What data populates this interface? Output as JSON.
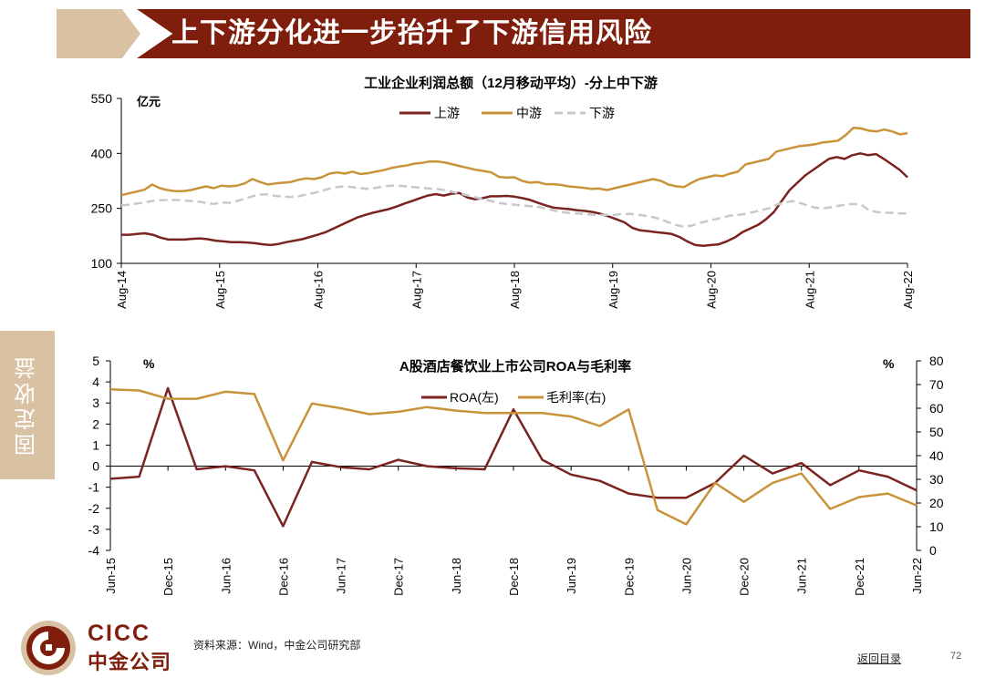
{
  "header": {
    "title": "上下游分化进一步抬升了下游信用风险"
  },
  "sidebar": {
    "label": "固定收益"
  },
  "colors": {
    "brand_red": "#7f1e0c",
    "tan": "#d8c2a3",
    "upstream": "#7b2320",
    "midstream": "#c8933a",
    "downstream": "#c8c8c8"
  },
  "chart_data": [
    {
      "type": "line",
      "title": "工业企业利润总额（12月移动平均）-分上中下游",
      "ylabel": "亿元",
      "ylim": [
        100,
        550
      ],
      "yticks": [
        "550",
        "400",
        "250",
        "100"
      ],
      "xticks": [
        "Aug-14",
        "Aug-15",
        "Aug-16",
        "Aug-17",
        "Aug-18",
        "Aug-19",
        "Aug-20",
        "Aug-21",
        "Aug-22"
      ],
      "series": [
        {
          "name": "上游",
          "values": [
            178,
            178,
            180,
            182,
            178,
            170,
            165,
            165,
            165,
            167,
            168,
            166,
            162,
            160,
            158,
            158,
            157,
            155,
            152,
            150,
            153,
            158,
            162,
            166,
            172,
            178,
            185,
            195,
            205,
            215,
            225,
            232,
            238,
            243,
            248,
            255,
            263,
            270,
            278,
            285,
            289,
            285,
            290,
            292,
            280,
            275,
            278,
            283,
            283,
            284,
            282,
            278,
            273,
            265,
            258,
            252,
            250,
            248,
            245,
            243,
            240,
            235,
            228,
            220,
            212,
            197,
            190,
            188,
            185,
            183,
            180,
            172,
            160,
            150,
            148,
            150,
            152,
            160,
            170,
            185,
            195,
            205,
            220,
            240,
            270,
            300,
            320,
            340,
            355,
            370,
            385,
            390,
            385,
            395,
            400,
            395,
            398,
            385,
            370,
            355,
            335
          ]
        },
        {
          "name": "中游",
          "values": [
            286,
            291,
            296,
            301,
            315,
            305,
            300,
            297,
            297,
            300,
            305,
            310,
            305,
            312,
            310,
            312,
            318,
            330,
            322,
            315,
            318,
            320,
            322,
            328,
            332,
            330,
            335,
            345,
            348,
            345,
            350,
            344,
            346,
            350,
            354,
            360,
            364,
            367,
            372,
            374,
            378,
            378,
            375,
            370,
            365,
            360,
            355,
            352,
            348,
            336,
            334,
            335,
            325,
            320,
            322,
            316,
            316,
            314,
            310,
            308,
            306,
            303,
            304,
            300,
            305,
            310,
            315,
            320,
            325,
            330,
            325,
            315,
            310,
            308,
            320,
            330,
            335,
            340,
            338,
            345,
            350,
            370,
            375,
            380,
            385,
            405,
            410,
            415,
            420,
            422,
            425,
            430,
            432,
            435,
            450,
            470,
            468,
            462,
            460,
            465,
            460,
            452,
            455
          ]
        },
        {
          "name": "下游",
          "values": [
            258,
            260,
            263,
            266,
            270,
            272,
            273,
            273,
            272,
            270,
            268,
            265,
            262,
            266,
            265,
            270,
            276,
            283,
            288,
            288,
            284,
            282,
            281,
            283,
            288,
            292,
            298,
            304,
            308,
            310,
            308,
            305,
            303,
            306,
            310,
            312,
            312,
            310,
            308,
            306,
            304,
            303,
            300,
            295,
            290,
            285,
            280,
            275,
            270,
            265,
            262,
            260,
            258,
            256,
            255,
            250,
            245,
            240,
            238,
            236,
            235,
            233,
            232,
            232,
            232,
            235,
            235,
            233,
            230,
            226,
            220,
            212,
            205,
            200,
            203,
            210,
            215,
            220,
            225,
            230,
            232,
            235,
            240,
            245,
            250,
            260,
            265,
            270,
            265,
            258,
            252,
            250,
            253,
            257,
            260,
            262,
            260,
            245,
            240,
            238,
            238,
            236,
            236
          ]
        }
      ]
    },
    {
      "type": "line",
      "title": "A股酒店餐饮业上市公司ROA与毛利率",
      "ylabel_left": "%",
      "ylabel_right": "%",
      "ylim_left": [
        -4,
        5
      ],
      "ylim_right": [
        0,
        80
      ],
      "yticks_left": [
        "5",
        "4",
        "3",
        "2",
        "1",
        "0",
        "-1",
        "-2",
        "-3",
        "-4"
      ],
      "yticks_right": [
        "80",
        "70",
        "60",
        "50",
        "40",
        "30",
        "20",
        "10",
        "0"
      ],
      "xticks": [
        "Jun-15",
        "Dec-15",
        "Jun-16",
        "Dec-16",
        "Jun-17",
        "Dec-17",
        "Jun-18",
        "Dec-18",
        "Jun-19",
        "Dec-19",
        "Jun-20",
        "Dec-20",
        "Jun-21",
        "Dec-21",
        "Jun-22"
      ],
      "series": [
        {
          "name": "ROA(左)",
          "axis": "left",
          "values": [
            -0.6,
            -0.5,
            3.7,
            -0.15,
            0.0,
            -0.2,
            -2.85,
            0.2,
            -0.05,
            -0.15,
            0.3,
            0.0,
            -0.1,
            -0.15,
            2.7,
            0.3,
            -0.4,
            -0.7,
            -1.3,
            -1.5,
            -1.5,
            -0.8,
            0.5,
            -0.35,
            0.15,
            -0.9,
            -0.2,
            -0.5,
            -1.15
          ]
        },
        {
          "name": "毛利率(右)",
          "axis": "right",
          "values": [
            68,
            67.5,
            64,
            64,
            67,
            66,
            38,
            62,
            60,
            57.5,
            58.5,
            60.5,
            59,
            58,
            58,
            58,
            56.5,
            52.5,
            59.5,
            17,
            11,
            28.5,
            20.5,
            28.5,
            32.5,
            17.5,
            22.5,
            24,
            19
          ]
        }
      ]
    }
  ],
  "footer": {
    "logo_en": "CICC",
    "logo_cn": "中金公司",
    "source": "资料来源：Wind，中金公司研究部",
    "back_link": "返回目录",
    "page": "72"
  }
}
